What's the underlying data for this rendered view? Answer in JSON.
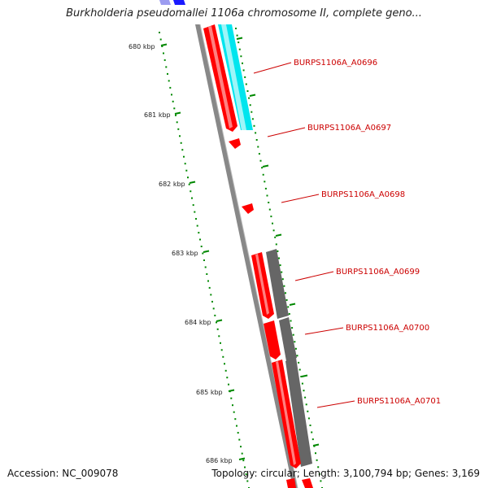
{
  "title": "Burkholderia pseudomallei 1106a chromosome II, complete geno...",
  "accession": "Accession: NC_009078",
  "topology": "Topology: circular; Length: 3,100,794 bp; Genes: 3,169",
  "ticks": [
    "680 kbp",
    "681 kbp",
    "682 kbp",
    "683 kbp",
    "684 kbp",
    "685 kbp",
    "686 kbp"
  ],
  "genes": [
    {
      "label": "BURPS1106A_A0696"
    },
    {
      "label": "BURPS1106A_A0697"
    },
    {
      "label": "BURPS1106A_A0698"
    },
    {
      "label": "BURPS1106A_A0699"
    },
    {
      "label": "BURPS1106A_A0700"
    },
    {
      "label": "BURPS1106A_A0701"
    }
  ],
  "colors": {
    "backbone": "#888888",
    "cds": "#ff0000",
    "cyan_feature": "#00e5ee",
    "gray_feature": "#666666",
    "blue_feature": "#1a1aff",
    "tick": "#008800",
    "label": "#cc0000"
  }
}
